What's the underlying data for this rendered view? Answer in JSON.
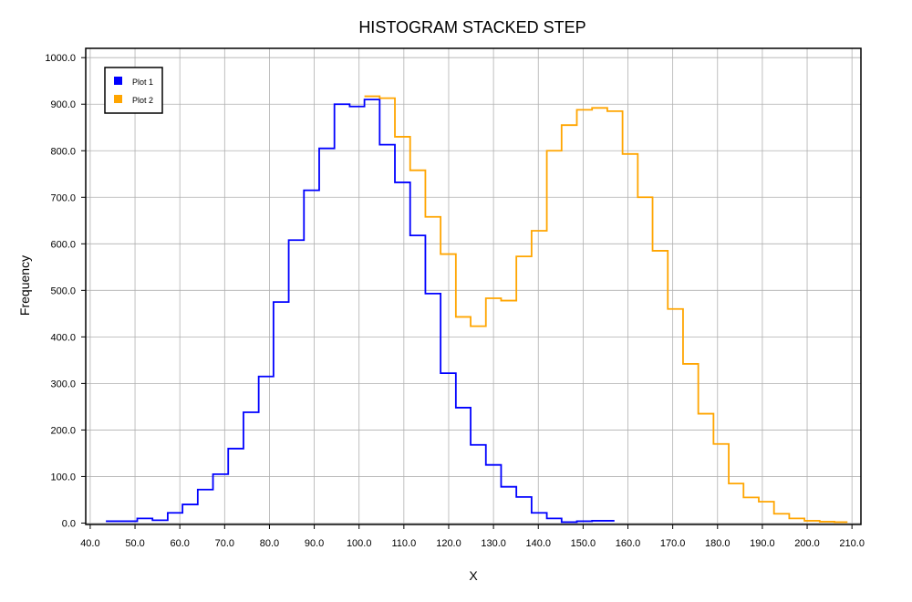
{
  "chart_data": {
    "type": "histogram",
    "histtype": "stacked step",
    "title": "HISTOGRAM STACKED STEP",
    "xlabel": "X",
    "ylabel": "Frequency",
    "xlim": [
      39,
      212
    ],
    "ylim": [
      -3,
      1020
    ],
    "xticks": [
      40,
      50,
      60,
      70,
      80,
      90,
      100,
      110,
      120,
      130,
      140,
      150,
      160,
      170,
      180,
      190,
      200,
      210
    ],
    "xtick_labels": [
      "40.0",
      "50.0",
      "60.0",
      "70.0",
      "80.0",
      "90.0",
      "100.0",
      "110.0",
      "120.0",
      "130.0",
      "140.0",
      "150.0",
      "160.0",
      "170.0",
      "180.0",
      "190.0",
      "200.0",
      "210.0"
    ],
    "yticks": [
      0,
      100,
      200,
      300,
      400,
      500,
      600,
      700,
      800,
      900,
      1000
    ],
    "ytick_labels": [
      "0.0",
      "100.0",
      "200.0",
      "300.0",
      "400.0",
      "500.0",
      "600.0",
      "700.0",
      "800.0",
      "900.0",
      "1000.0"
    ],
    "grid": true,
    "legend_position": "top-left",
    "series": [
      {
        "name": "Plot 1",
        "color": "#0000ff",
        "bin_edges": [
          43.5,
          50.5,
          53.9,
          57.3,
          60.6,
          64.0,
          67.4,
          70.8,
          74.2,
          77.6,
          80.9,
          84.3,
          87.7,
          91.1,
          94.5,
          97.9,
          101.2,
          104.6,
          108.0,
          111.4,
          114.8,
          118.2,
          121.6,
          124.9,
          128.3,
          131.7,
          135.1,
          138.5,
          141.9,
          145.2,
          148.6,
          152.0,
          157.0
        ],
        "counts": [
          4,
          10,
          6,
          22,
          40,
          72,
          105,
          160,
          238,
          315,
          475,
          608,
          715,
          805,
          900,
          895,
          910,
          813,
          732,
          618,
          493,
          322,
          248,
          168,
          125,
          78,
          56,
          22,
          10,
          2,
          4,
          5
        ]
      },
      {
        "name": "Plot 2",
        "color": "#ffa500",
        "bin_edges": [
          101.2,
          104.6,
          108.0,
          111.4,
          114.8,
          118.2,
          121.6,
          124.9,
          128.3,
          131.7,
          135.1,
          138.5,
          141.9,
          145.2,
          148.6,
          152.0,
          155.4,
          158.8,
          162.2,
          165.5,
          168.9,
          172.3,
          175.7,
          179.1,
          182.5,
          185.8,
          189.2,
          192.6,
          196.0,
          199.4,
          202.8,
          206.1,
          209.0
        ],
        "counts": [
          917,
          913,
          830,
          758,
          658,
          578,
          443,
          423,
          483,
          478,
          573,
          628,
          800,
          855,
          888,
          892,
          885,
          793,
          700,
          585,
          460,
          342,
          235,
          170,
          85,
          55,
          46,
          20,
          10,
          5,
          3,
          2
        ]
      }
    ]
  }
}
